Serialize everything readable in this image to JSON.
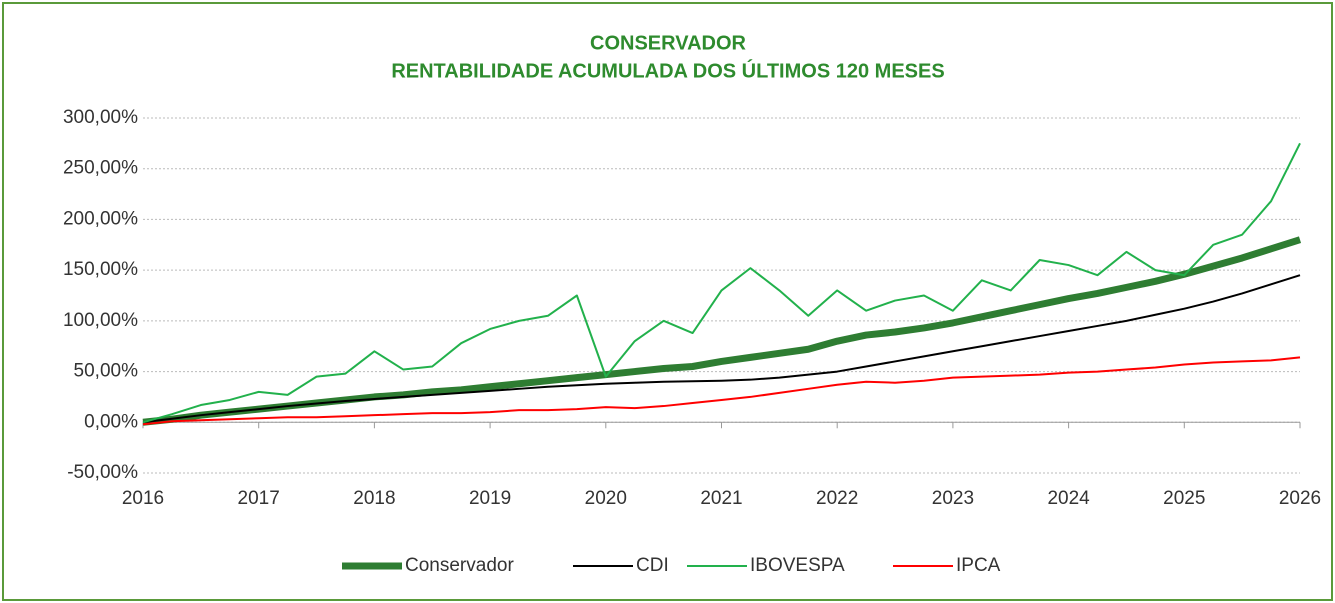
{
  "chart_data": {
    "type": "line",
    "title": "CONSERVADOR",
    "subtitle": "RENTABILIDADE ACUMULADA DOS ÚLTIMOS 120 MESES",
    "x": [
      2016,
      2016.25,
      2016.5,
      2016.75,
      2017,
      2017.25,
      2017.5,
      2017.75,
      2018,
      2018.25,
      2018.5,
      2018.75,
      2019,
      2019.25,
      2019.5,
      2019.75,
      2020,
      2020.25,
      2020.5,
      2020.75,
      2021,
      2021.25,
      2021.5,
      2021.75,
      2022,
      2022.25,
      2022.5,
      2022.75,
      2023,
      2023.25,
      2023.5,
      2023.75,
      2024,
      2024.25,
      2024.5,
      2024.75,
      2025,
      2025.25,
      2025.5,
      2025.75,
      2026
    ],
    "series": [
      {
        "name": "Conservador",
        "color": "#2e7d32",
        "values": [
          0,
          3,
          7,
          10,
          13,
          16,
          19,
          22,
          25,
          27,
          30,
          32,
          35,
          38,
          41,
          44,
          47,
          50,
          53,
          55,
          60,
          64,
          68,
          72,
          80,
          86,
          89,
          93,
          98,
          104,
          110,
          116,
          122,
          127,
          133,
          139,
          146,
          154,
          162,
          171,
          180
        ]
      },
      {
        "name": "CDI",
        "color": "#000000",
        "values": [
          0,
          3.5,
          7,
          10,
          13,
          16,
          18.5,
          21,
          23,
          25,
          27,
          29,
          31,
          33,
          35,
          36.5,
          38,
          39,
          40,
          40.5,
          41,
          42,
          44,
          47,
          50,
          55,
          60,
          65,
          70,
          75,
          80,
          85,
          90,
          95,
          100,
          106,
          112,
          119,
          127,
          136,
          145
        ]
      },
      {
        "name": "IBOVESPA",
        "color": "#22b14c",
        "values": [
          0,
          8,
          17,
          22,
          30,
          27,
          45,
          48,
          70,
          52,
          55,
          78,
          92,
          100,
          105,
          125,
          45,
          80,
          100,
          88,
          130,
          152,
          130,
          105,
          130,
          110,
          120,
          125,
          110,
          140,
          130,
          160,
          155,
          145,
          168,
          150,
          145,
          175,
          185,
          218,
          275
        ]
      },
      {
        "name": "IPCA",
        "color": "#ff0000",
        "values": [
          -2,
          1,
          2,
          3,
          4,
          5,
          5,
          6,
          7,
          8,
          9,
          9,
          10,
          12,
          12,
          13,
          15,
          14,
          16,
          19,
          22,
          25,
          29,
          33,
          37,
          40,
          39,
          41,
          44,
          45,
          46,
          47,
          49,
          50,
          52,
          54,
          57,
          59,
          60,
          61,
          64
        ]
      }
    ],
    "xlim": [
      2016,
      2026
    ],
    "xticks": [
      2016,
      2017,
      2018,
      2019,
      2020,
      2021,
      2022,
      2023,
      2024,
      2025,
      2026
    ],
    "ylim": [
      -50,
      300
    ],
    "yticks": [
      {
        "value": -50,
        "label": "-50,00%"
      },
      {
        "value": 0,
        "label": "0,00%"
      },
      {
        "value": 50,
        "label": "50,00%"
      },
      {
        "value": 100,
        "label": "100,00%"
      },
      {
        "value": 150,
        "label": "150,00%"
      },
      {
        "value": 200,
        "label": "200,00%"
      },
      {
        "value": 250,
        "label": "250,00%"
      },
      {
        "value": 300,
        "label": "300,00%"
      }
    ],
    "grid": true,
    "legend": "bottom"
  }
}
